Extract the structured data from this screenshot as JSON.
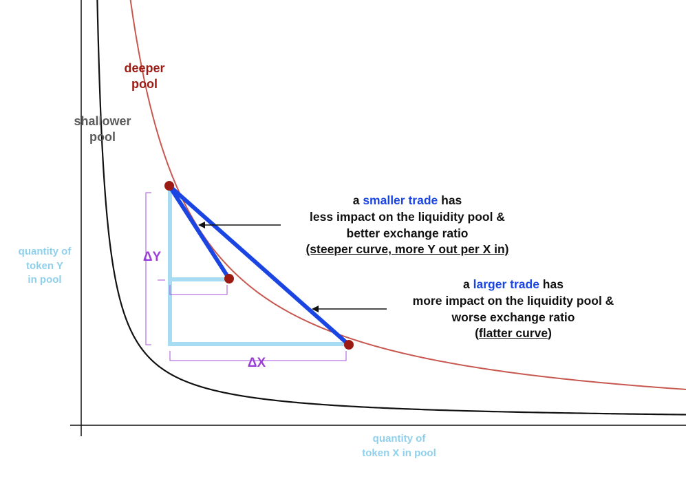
{
  "labels": {
    "deeper_pool": [
      "deeper",
      "pool"
    ],
    "shallower_pool": [
      "shallower",
      "pool"
    ],
    "y_axis": [
      "quantity of",
      "token Y",
      "in pool"
    ],
    "x_axis": [
      "quantity of",
      "token X in pool"
    ],
    "delta_y": "ΔY",
    "delta_x": "ΔX"
  },
  "small_trade_note": {
    "prefix": "a ",
    "highlight": "smaller trade",
    "suffix": " has",
    "line2": "less impact on the liquidity pool &",
    "line3": "better exchange ratio",
    "line4": "(steeper curve, more Y out per X in)"
  },
  "large_trade_note": {
    "prefix": "a ",
    "highlight": "larger trade",
    "suffix": " has",
    "line2": "more impact on the liquidity pool &",
    "line3": "worse exchange ratio",
    "line4_open": "(",
    "line4_underlined": "flatter curve",
    "line4_close": ")"
  },
  "colors": {
    "deeper_curve": "#c8574f",
    "shallower_curve": "#111111",
    "trade_lines": "#1b45e3",
    "delta_triangles": "#a7dcf3",
    "delta_brackets": "#a64fd8",
    "points": "#9b1a13",
    "axes": "#111111"
  }
}
